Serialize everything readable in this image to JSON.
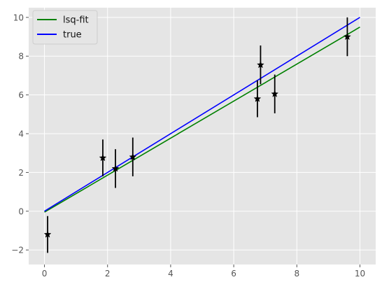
{
  "chart_data": {
    "type": "scatter",
    "title": "",
    "xlabel": "",
    "ylabel": "",
    "xlim": [
      -0.5,
      10.5
    ],
    "ylim": [
      -2.75,
      10.5
    ],
    "xticks": [
      0,
      2,
      4,
      6,
      8,
      10
    ],
    "yticks": [
      -2,
      0,
      2,
      4,
      6,
      8,
      10
    ],
    "xtick_labels": [
      "0",
      "2",
      "4",
      "6",
      "8",
      "10"
    ],
    "ytick_labels": [
      "−2",
      "0",
      "2",
      "4",
      "6",
      "8",
      "10"
    ],
    "grid": true,
    "background": "#E5E5E5",
    "legend": {
      "placement": "top-left"
    },
    "lines": [
      {
        "name": "lsq-fit",
        "color": "#008000",
        "x": [
          0,
          10
        ],
        "y": [
          -0.05,
          9.5
        ]
      },
      {
        "name": "true",
        "color": "#0000FF",
        "x": [
          0,
          10
        ],
        "y": [
          0.0,
          10.0
        ]
      }
    ],
    "points": {
      "marker": "star",
      "color": "#000000",
      "x": [
        0.1,
        1.85,
        2.25,
        2.8,
        6.75,
        6.85,
        7.3,
        9.6
      ],
      "y": [
        -1.2,
        2.75,
        2.2,
        2.8,
        5.8,
        7.55,
        6.05,
        9.0
      ],
      "yerr": [
        0.95,
        0.95,
        1.0,
        1.0,
        0.95,
        1.0,
        1.0,
        1.0
      ]
    }
  }
}
